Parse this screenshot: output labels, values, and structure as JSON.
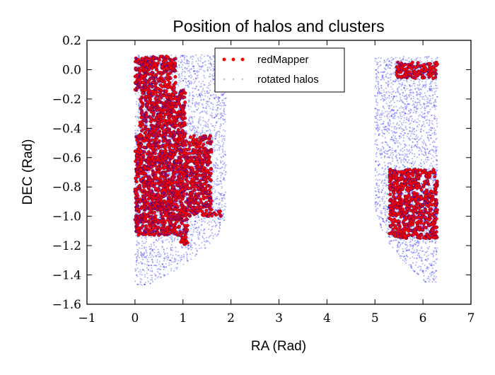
{
  "chart_data": {
    "type": "scatter",
    "title": "Position of halos and clusters",
    "xlabel": "RA (Rad)",
    "ylabel": "DEC (Rad)",
    "xlim": [
      -1,
      7
    ],
    "ylim": [
      -1.6,
      0.2
    ],
    "xticks": [
      -1,
      0,
      1,
      2,
      3,
      4,
      5,
      6,
      7
    ],
    "yticks": [
      0.2,
      0.0,
      -0.2,
      -0.4,
      -0.6,
      -0.8,
      -1.0,
      -1.2,
      -1.4,
      -1.6
    ],
    "xtick_labels": [
      "−1",
      "0",
      "1",
      "2",
      "3",
      "4",
      "5",
      "6",
      "7"
    ],
    "ytick_labels": [
      "0.2",
      "0.0",
      "−0.2",
      "−0.4",
      "−0.6",
      "−0.8",
      "−1.0",
      "−1.2",
      "−1.4",
      "−1.6"
    ],
    "grid": false,
    "legend_position": "top-center",
    "series": [
      {
        "name": "redMapper",
        "color": "#ff0000",
        "regions": [
          {
            "ra": [
              0.0,
              0.85
            ],
            "dec": [
              -0.14,
              0.09
            ]
          },
          {
            "ra": [
              0.1,
              1.05
            ],
            "dec": [
              -0.45,
              -0.14
            ]
          },
          {
            "ra": [
              0.0,
              1.6
            ],
            "dec": [
              -1.0,
              -0.45
            ]
          },
          {
            "ra": [
              0.0,
              1.8
            ],
            "dec": [
              -1.0,
              -0.96
            ]
          },
          {
            "ra": [
              0.0,
              1.1
            ],
            "dec": [
              -1.13,
              -1.0
            ]
          },
          {
            "ra": [
              0.95,
              1.1
            ],
            "dec": [
              -1.2,
              -1.13
            ]
          },
          {
            "ra": [
              5.45,
              6.3
            ],
            "dec": [
              -0.06,
              0.05
            ]
          },
          {
            "ra": [
              5.3,
              6.3
            ],
            "dec": [
              -1.15,
              -0.68
            ]
          }
        ]
      },
      {
        "name": "rotated halos",
        "color": "#0000ff",
        "regions": [
          {
            "ra": [
              0.0,
              1.9
            ],
            "dec": [
              -1.47,
              0.1
            ]
          },
          {
            "ra": [
              5.0,
              6.3
            ],
            "dec": [
              -1.45,
              0.09
            ]
          }
        ]
      }
    ]
  }
}
